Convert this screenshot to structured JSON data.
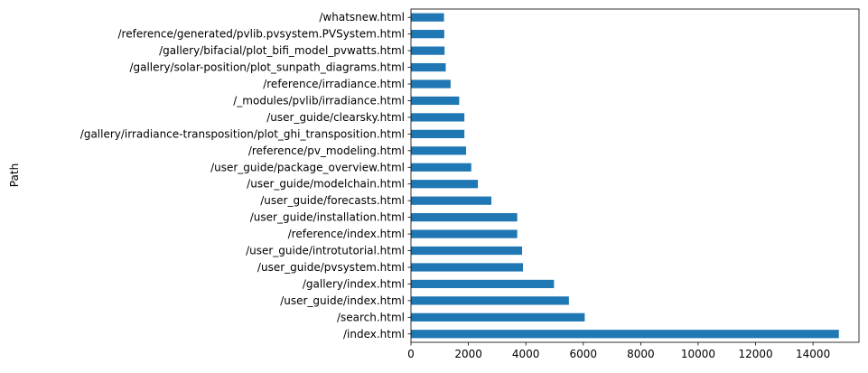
{
  "chart_data": {
    "type": "bar",
    "orientation": "horizontal",
    "title": "",
    "xlabel": "",
    "ylabel": "Path",
    "xlim": [
      0,
      15600
    ],
    "x_ticks": [
      0,
      2000,
      4000,
      6000,
      8000,
      10000,
      12000,
      14000
    ],
    "x_tick_labels": [
      "0",
      "2000",
      "4000",
      "6000",
      "8000",
      "10000",
      "12000",
      "14000"
    ],
    "grid": false,
    "legend": "none",
    "bar_color": "#1f77b4",
    "categories": [
      "/index.html",
      "/search.html",
      "/user_guide/index.html",
      "/gallery/index.html",
      "/user_guide/pvsystem.html",
      "/user_guide/introtutorial.html",
      "/reference/index.html",
      "/user_guide/installation.html",
      "/user_guide/forecasts.html",
      "/user_guide/modelchain.html",
      "/user_guide/package_overview.html",
      "/reference/pv_modeling.html",
      "/gallery/irradiance-transposition/plot_ghi_transposition.html",
      "/user_guide/clearsky.html",
      "/_modules/pvlib/irradiance.html",
      "/reference/irradiance.html",
      "/gallery/solar-position/plot_sunpath_diagrams.html",
      "/gallery/bifacial/plot_bifi_model_pvwatts.html",
      "/reference/generated/pvlib.pvsystem.PVSystem.html",
      "/whatsnew.html"
    ],
    "values": [
      14900,
      6050,
      5500,
      4980,
      3900,
      3870,
      3700,
      3700,
      2800,
      2330,
      2100,
      1920,
      1860,
      1860,
      1680,
      1380,
      1210,
      1170,
      1160,
      1150
    ]
  }
}
